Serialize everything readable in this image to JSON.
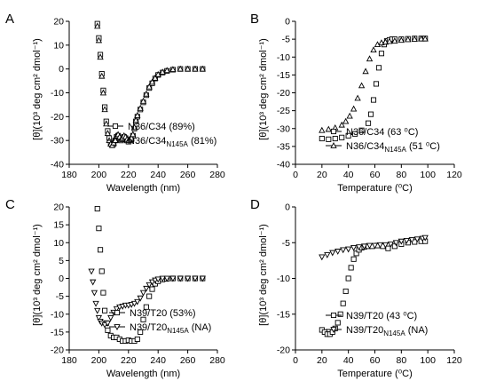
{
  "chart_data": [
    {
      "panel": "A",
      "type": "scatter",
      "xlabel": "Wavelength (nm)",
      "ylabel": "[θ](10³ deg cm² dmol⁻¹)",
      "xlim": [
        180,
        280
      ],
      "ylim": [
        -40,
        20
      ],
      "xticks": [
        180,
        200,
        220,
        240,
        260,
        280
      ],
      "yticks": [
        -40,
        -30,
        -20,
        -10,
        0,
        10,
        20
      ],
      "legend_position": "bottom-right",
      "series": [
        {
          "name": "N36/C34 (89%)",
          "marker": "square",
          "x": [
            199,
            200,
            201,
            202,
            203,
            204,
            205,
            206,
            207,
            208,
            209,
            210,
            211,
            212,
            213,
            214,
            215,
            216,
            217,
            218,
            219,
            220,
            221,
            222,
            223,
            224,
            225,
            226,
            228,
            230,
            232,
            234,
            236,
            238,
            240,
            243,
            246,
            250,
            255,
            260,
            265,
            270
          ],
          "y": [
            19,
            13,
            6,
            -2,
            -9,
            -16,
            -22,
            -26,
            -29,
            -31,
            -32,
            -31.5,
            -30,
            -28.5,
            -28,
            -29,
            -30,
            -29.5,
            -28.5,
            -29,
            -30,
            -30.5,
            -30,
            -29.5,
            -28,
            -25,
            -22,
            -20,
            -17,
            -14,
            -11,
            -8,
            -6,
            -4,
            -2.5,
            -1.5,
            -0.8,
            -0.3,
            0,
            0,
            0,
            0
          ]
        },
        {
          "name": "N36/C34",
          "name_sub": "N145A",
          "name_suffix": " (81%)",
          "marker": "triangle",
          "x": [
            199,
            200,
            201,
            202,
            203,
            204,
            205,
            206,
            207,
            208,
            209,
            210,
            211,
            212,
            213,
            214,
            215,
            216,
            217,
            218,
            219,
            220,
            221,
            222,
            223,
            224,
            225,
            226,
            228,
            230,
            232,
            234,
            236,
            238,
            240,
            243,
            246,
            250,
            255,
            260,
            265,
            270
          ],
          "y": [
            18,
            12,
            5,
            -3,
            -10,
            -17,
            -23,
            -27,
            -30,
            -31.5,
            -32,
            -31,
            -29.5,
            -28,
            -27.5,
            -28.5,
            -29.5,
            -29,
            -28,
            -28.5,
            -29.5,
            -30,
            -29.5,
            -29,
            -27.5,
            -24.5,
            -21.5,
            -19.5,
            -16.5,
            -13.5,
            -10.5,
            -7.5,
            -5.5,
            -3.8,
            -2.3,
            -1.3,
            -0.6,
            -0.2,
            0,
            0,
            0,
            0
          ]
        }
      ]
    },
    {
      "panel": "B",
      "type": "scatter",
      "xlabel": "Temperature (⁰C)",
      "ylabel": "[θ](10³ deg cm² dmol⁻¹)",
      "xlim": [
        0,
        120
      ],
      "ylim": [
        -40,
        0
      ],
      "xticks": [
        0,
        20,
        40,
        60,
        80,
        100,
        120
      ],
      "yticks": [
        -40,
        -35,
        -30,
        -25,
        -20,
        -15,
        -10,
        -5,
        0
      ],
      "legend_position": "bottom-right",
      "series": [
        {
          "name": "N36/C34 (63 ⁰C)",
          "marker": "square",
          "x": [
            20,
            25,
            30,
            35,
            40,
            45,
            50,
            55,
            57,
            59,
            61,
            63,
            65,
            67,
            69,
            71,
            73,
            75,
            80,
            85,
            90,
            95,
            98
          ],
          "y": [
            -32.8,
            -33,
            -32.8,
            -32.5,
            -32,
            -31.5,
            -30.5,
            -28.5,
            -26,
            -22,
            -17.5,
            -13,
            -9,
            -6.5,
            -5.5,
            -5.2,
            -5,
            -5,
            -5,
            -4.9,
            -4.8,
            -4.8,
            -4.8
          ]
        },
        {
          "name": "N36/C34",
          "name_sub": "N145A",
          "name_suffix": " (51 ⁰C)",
          "marker": "triangle",
          "x": [
            20,
            25,
            30,
            35,
            38,
            41,
            44,
            47,
            50,
            53,
            56,
            59,
            62,
            65,
            68,
            71,
            75,
            80,
            85,
            90,
            95,
            98
          ],
          "y": [
            -30.5,
            -30.2,
            -29.8,
            -29,
            -28,
            -26.5,
            -24.5,
            -21.5,
            -18,
            -14,
            -10.5,
            -8,
            -6.5,
            -6,
            -5.8,
            -5.6,
            -5.5,
            -5.3,
            -5.1,
            -5,
            -4.9,
            -4.9
          ]
        }
      ]
    },
    {
      "panel": "C",
      "type": "scatter",
      "xlabel": "Wavelength (nm)",
      "ylabel": "[θ](10³ deg cm² dmol⁻¹)",
      "xlim": [
        180,
        280
      ],
      "ylim": [
        -20,
        20
      ],
      "xticks": [
        180,
        200,
        220,
        240,
        260,
        280
      ],
      "yticks": [
        -20,
        -15,
        -10,
        -5,
        0,
        5,
        10,
        15,
        20
      ],
      "legend_position": "bottom-right",
      "series": [
        {
          "name": "N39/T20 (53%)",
          "marker": "square",
          "x": [
            199,
            200,
            201,
            202,
            203,
            204,
            205,
            206,
            208,
            210,
            212,
            214,
            216,
            218,
            220,
            222,
            224,
            226,
            228,
            230,
            232,
            234,
            236,
            238,
            240,
            243,
            246,
            250,
            255,
            260,
            265,
            270
          ],
          "y": [
            19.5,
            14,
            8,
            2,
            -4,
            -9,
            -12.5,
            -14.5,
            -16,
            -16.5,
            -16.5,
            -17,
            -17.5,
            -17.5,
            -17.3,
            -17.5,
            -17.5,
            -17,
            -15,
            -11.5,
            -8,
            -5,
            -3,
            -1.5,
            -0.8,
            -0.3,
            -0.1,
            0,
            0,
            0,
            0,
            0
          ]
        },
        {
          "name": "N39/T20",
          "name_sub": "N145A",
          "name_suffix": " (NA)",
          "marker": "triangle-down",
          "x": [
            195,
            196,
            197,
            198,
            199,
            200,
            201,
            202,
            204,
            206,
            208,
            210,
            212,
            214,
            216,
            218,
            220,
            222,
            224,
            226,
            228,
            230,
            232,
            234,
            236,
            238,
            240,
            243,
            246,
            250,
            255,
            260,
            265,
            270
          ],
          "y": [
            2,
            -1,
            -4,
            -7,
            -9,
            -11,
            -12,
            -12.5,
            -13,
            -12.5,
            -11,
            -9.5,
            -8.5,
            -8,
            -7.8,
            -7.5,
            -7.5,
            -7.3,
            -7,
            -6.5,
            -5.5,
            -4,
            -2.8,
            -1.8,
            -1,
            -0.5,
            -0.2,
            0,
            0,
            0,
            0,
            0,
            0,
            0
          ]
        }
      ]
    },
    {
      "panel": "D",
      "type": "scatter",
      "xlabel": "Temperature (⁰C)",
      "ylabel": "[θ](10³ deg cm² dmol⁻¹)",
      "xlim": [
        0,
        120
      ],
      "ylim": [
        -20,
        0
      ],
      "xticks": [
        0,
        20,
        40,
        60,
        80,
        100,
        120
      ],
      "yticks": [
        -20,
        -15,
        -10,
        -5,
        0
      ],
      "legend_position": "bottom-right",
      "series": [
        {
          "name": "N39/T20 (43 ⁰C)",
          "marker": "square",
          "x": [
            20,
            22,
            24,
            26,
            28,
            30,
            32,
            34,
            36,
            38,
            40,
            42,
            44,
            46,
            48,
            50,
            52,
            55,
            58,
            62,
            66,
            70,
            75,
            80,
            85,
            90,
            95,
            98
          ],
          "y": [
            -17.2,
            -17.5,
            -17.8,
            -17.8,
            -17.5,
            -17,
            -16.2,
            -15,
            -13.5,
            -11.8,
            -10,
            -8.5,
            -7.3,
            -6.5,
            -6,
            -5.7,
            -5.6,
            -5.5,
            -5.5,
            -5.4,
            -5.5,
            -5.8,
            -5.5,
            -5.2,
            -5,
            -4.9,
            -4.8,
            -4.8
          ]
        },
        {
          "name": "N39/T20",
          "name_sub": "N145A",
          "name_suffix": " (NA)",
          "marker": "triangle-down",
          "x": [
            20,
            24,
            28,
            32,
            36,
            40,
            44,
            48,
            52,
            56,
            60,
            64,
            68,
            72,
            76,
            80,
            84,
            88,
            92,
            96,
            98
          ],
          "y": [
            -7,
            -6.7,
            -6.4,
            -6.2,
            -6,
            -5.9,
            -5.7,
            -5.6,
            -5.5,
            -5.4,
            -5.4,
            -5.3,
            -5.3,
            -5.2,
            -5,
            -4.8,
            -4.7,
            -4.6,
            -4.5,
            -4.4,
            -4.3
          ]
        }
      ]
    }
  ]
}
